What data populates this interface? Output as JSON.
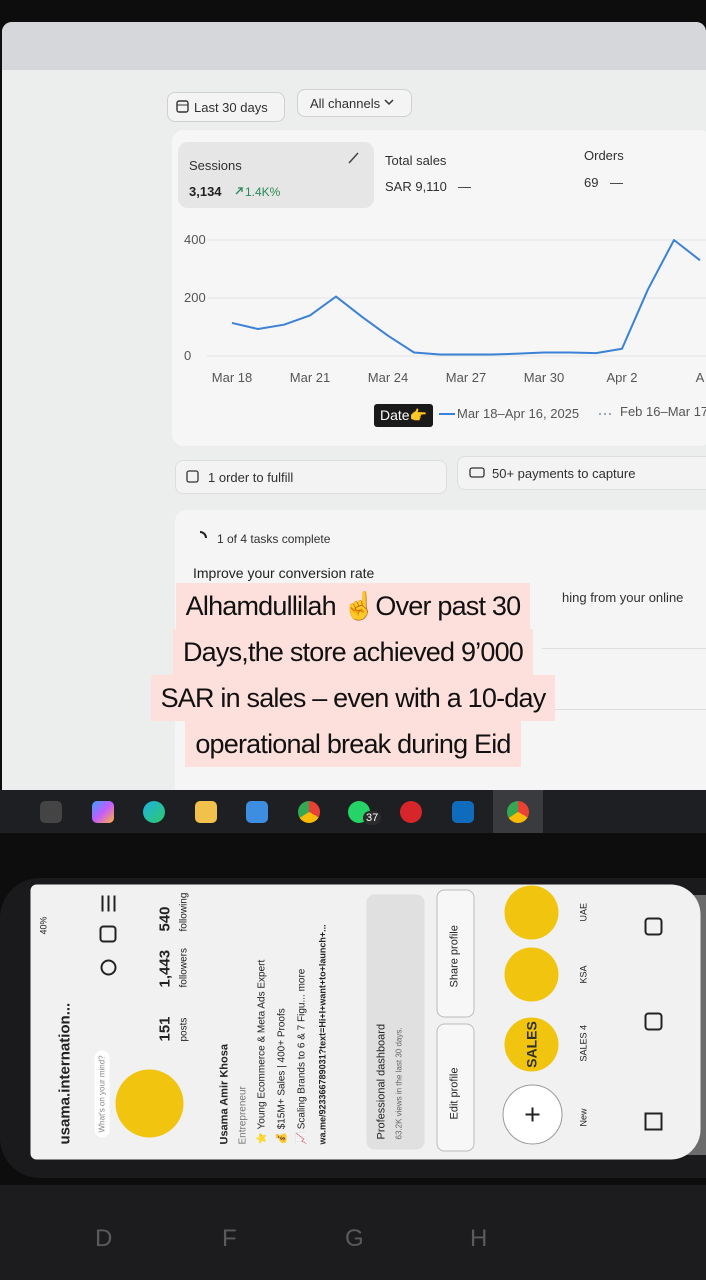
{
  "screen": {
    "filters": {
      "date_range": "Last 30 days",
      "channels": "All channels"
    },
    "metrics": [
      {
        "label": "Sessions",
        "value": "3,134",
        "change": "1.4K%"
      },
      {
        "label": "Total sales",
        "value": "SAR 9,110",
        "change": "—"
      },
      {
        "label": "Orders",
        "value": "69",
        "change": "—"
      }
    ],
    "chart": {
      "type": "line",
      "categories": [
        "Mar 18",
        null,
        null,
        "Mar 21",
        null,
        null,
        "Mar 24",
        null,
        null,
        "Mar 27",
        null,
        null,
        "Mar 30",
        null,
        null,
        "Apr 2",
        null,
        null,
        "A"
      ],
      "values": [
        114,
        93,
        108,
        140,
        205,
        135,
        70,
        12,
        5,
        5,
        5,
        8,
        12,
        12,
        10,
        25,
        230,
        400,
        330
      ],
      "ylim": [
        0,
        400
      ],
      "yticks": [
        0,
        200,
        400
      ],
      "color": "#3b82d6",
      "legend": [
        "Mar 18–Apr 16, 2025",
        "Feb 16–Mar 17"
      ]
    },
    "sticker": "Date👉",
    "actions": [
      "1 order to fulfill",
      "50+ payments to capture"
    ],
    "tasks": {
      "progress": "1 of 4 tasks complete",
      "title": "Improve your conversion rate",
      "text": "hing from your online"
    },
    "taskbar_badge": "37"
  },
  "caption": [
    "Alhamdullilah ☝️Over past 30",
    "Days,the store achieved 9’000",
    "SAR in sales – even with a 10-day",
    "operational break during Eid"
  ],
  "phone": {
    "status": "40%",
    "username": "usama.internation...",
    "bubble": "What's on your mind?",
    "stats": [
      {
        "value": "151",
        "label": "posts"
      },
      {
        "value": "1,443",
        "label": "followers"
      },
      {
        "value": "540",
        "label": "following"
      }
    ],
    "name": "Usama Amir Khosa",
    "category": "Entrepreneur",
    "bio": [
      "⭐ Young Ecommerce & Meta Ads Expert",
      "💰 $15M+ Sales | 400+ Proofs",
      "📈 Scaling Brands to 6 & 7 Figu... more"
    ],
    "link": "wa.me/923366789031?text=Hi+I+want+to+launch+...",
    "dashboard": {
      "title": "Professional dashboard",
      "subtitle": "63.2K views in the last 30 days."
    },
    "buttons": [
      "Edit profile",
      "Share profile"
    ],
    "highlights": [
      {
        "label": "New"
      },
      {
        "label": "SALES 4",
        "cover": "SALES"
      },
      {
        "label": "KSA"
      },
      {
        "label": "UAE"
      }
    ]
  },
  "keyboard": [
    "D",
    "F",
    "G",
    "H"
  ]
}
